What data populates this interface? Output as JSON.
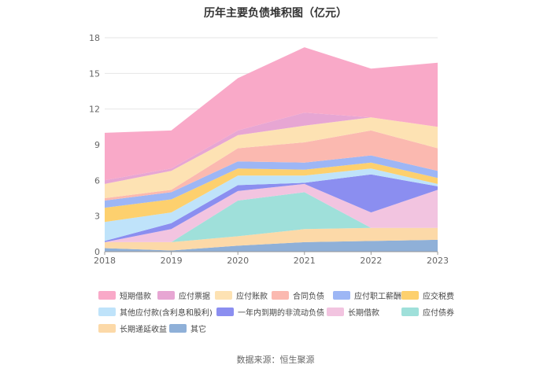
{
  "chart_data": {
    "type": "area",
    "stacked": true,
    "title": "历年主要负债堆积图（亿元）",
    "xlabel": "",
    "ylabel": "",
    "categories": [
      "2018",
      "2019",
      "2020",
      "2021",
      "2022",
      "2023"
    ],
    "ylim": [
      0,
      18
    ],
    "yticks": [
      "0",
      "3",
      "6",
      "9",
      "12",
      "15",
      "18"
    ],
    "grid": true,
    "legend_position": "bottom",
    "series": [
      {
        "name": "其它",
        "color": "#8fb0d8",
        "values": [
          0.3,
          0.1,
          0.5,
          0.8,
          0.9,
          1.0
        ]
      },
      {
        "name": "长期递延收益",
        "color": "#fcd9a8",
        "values": [
          0.5,
          0.7,
          0.8,
          1.1,
          1.1,
          1.0
        ]
      },
      {
        "name": "应付债券",
        "color": "#9fe0da",
        "values": [
          0,
          0,
          3.0,
          3.1,
          0,
          0
        ]
      },
      {
        "name": "长期借款",
        "color": "#f2c4e0",
        "values": [
          0,
          1.1,
          0.8,
          0.7,
          1.3,
          3.2
        ]
      },
      {
        "name": "一年内到期的非流动负债",
        "color": "#8b8ef0",
        "values": [
          0.1,
          0.5,
          0.5,
          0.1,
          3.2,
          0.3
        ]
      },
      {
        "name": "其他应付款(含利息和股利)",
        "color": "#bfe3fa",
        "values": [
          1.6,
          0.9,
          0.8,
          0.6,
          0.5,
          0.2
        ]
      },
      {
        "name": "应交税费",
        "color": "#fdd06e",
        "values": [
          1.2,
          1.1,
          0.6,
          0.5,
          0.5,
          0.5
        ]
      },
      {
        "name": "应付职工薪酬",
        "color": "#9db6f5",
        "values": [
          0.6,
          0.6,
          0.6,
          0.6,
          0.6,
          0.6
        ]
      },
      {
        "name": "合同负债",
        "color": "#fbb9b0",
        "values": [
          0.2,
          0.2,
          1.1,
          1.7,
          2.1,
          1.9
        ]
      },
      {
        "name": "应付账款",
        "color": "#fde2b3",
        "values": [
          1.2,
          1.6,
          1.1,
          1.4,
          1.1,
          1.8
        ]
      },
      {
        "name": "应付票据",
        "color": "#e7a6d3",
        "values": [
          0.3,
          0.2,
          0.4,
          1.1,
          0,
          0
        ]
      },
      {
        "name": "短期借款",
        "color": "#f9a9c8",
        "values": [
          4.0,
          3.2,
          4.4,
          5.5,
          4.1,
          5.4
        ]
      }
    ]
  },
  "source_text": "数据来源：恒生聚源"
}
